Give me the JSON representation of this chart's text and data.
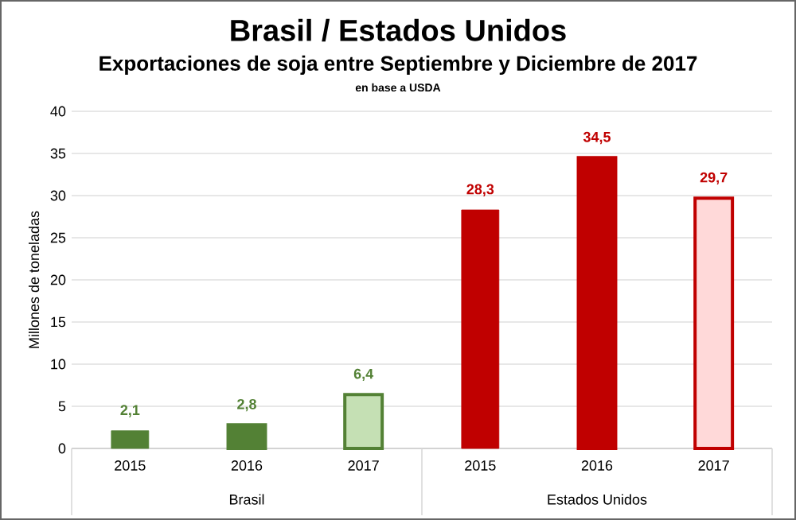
{
  "chart_data": {
    "type": "bar",
    "title": "Brasil / Estados Unidos",
    "subtitle": "Exportaciones de soja entre Septiembre y Diciembre de 2017",
    "ylabel": "Millones de toneladas",
    "annotations": [
      "en base a USDA",
      "Brasil",
      "Estados Unidos"
    ],
    "categories": [
      "2015",
      "2016",
      "2017",
      "2015",
      "2016",
      "2017"
    ],
    "values": [
      2.1,
      2.8,
      6.4,
      28.3,
      34.5,
      29.7
    ],
    "value_labels": [
      "2,1",
      "2,8",
      "6,4",
      "28,3",
      "34,5",
      "29,7"
    ],
    "colors": [
      "#538135",
      "#538135",
      "#c5e0b4",
      "#c00000",
      "#c00000",
      "#ffd9d9"
    ],
    "ylim": [
      0,
      40
    ],
    "yticks": [
      0,
      5,
      10,
      15,
      20,
      25,
      30,
      35,
      40
    ],
    "grid": "y"
  }
}
